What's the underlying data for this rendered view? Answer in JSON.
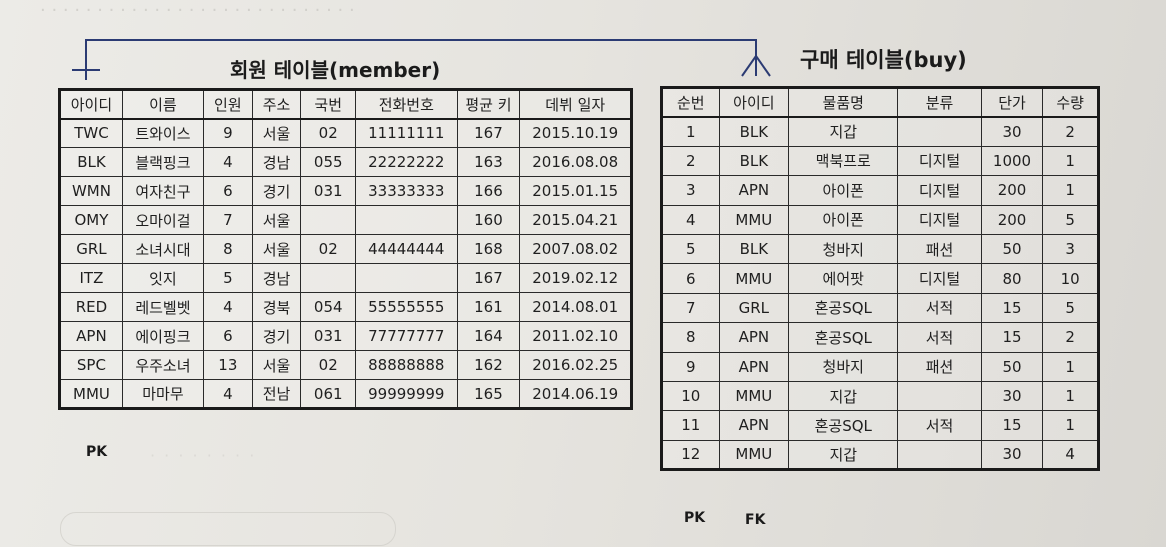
{
  "member_table": {
    "title": "회원 테이블(member)",
    "columns": [
      "아이디",
      "이름",
      "인원",
      "주소",
      "국번",
      "전화번호",
      "평균 키",
      "데뷔 일자"
    ],
    "rows": [
      [
        "TWC",
        "트와이스",
        "9",
        "서울",
        "02",
        "11111111",
        "167",
        "2015.10.19"
      ],
      [
        "BLK",
        "블랙핑크",
        "4",
        "경남",
        "055",
        "22222222",
        "163",
        "2016.08.08"
      ],
      [
        "WMN",
        "여자친구",
        "6",
        "경기",
        "031",
        "33333333",
        "166",
        "2015.01.15"
      ],
      [
        "OMY",
        "오마이걸",
        "7",
        "서울",
        "",
        "",
        "160",
        "2015.04.21"
      ],
      [
        "GRL",
        "소녀시대",
        "8",
        "서울",
        "02",
        "44444444",
        "168",
        "2007.08.02"
      ],
      [
        "ITZ",
        "잇지",
        "5",
        "경남",
        "",
        "",
        "167",
        "2019.02.12"
      ],
      [
        "RED",
        "레드벨벳",
        "4",
        "경북",
        "054",
        "55555555",
        "161",
        "2014.08.01"
      ],
      [
        "APN",
        "에이핑크",
        "6",
        "경기",
        "031",
        "77777777",
        "164",
        "2011.02.10"
      ],
      [
        "SPC",
        "우주소녀",
        "13",
        "서울",
        "02",
        "88888888",
        "162",
        "2016.02.25"
      ],
      [
        "MMU",
        "마마무",
        "4",
        "전남",
        "061",
        "99999999",
        "165",
        "2014.06.19"
      ]
    ],
    "pk_label": "PK"
  },
  "buy_table": {
    "title": "구매 테이블(buy)",
    "columns": [
      "순번",
      "아이디",
      "물품명",
      "분류",
      "단가",
      "수량"
    ],
    "rows": [
      [
        "1",
        "BLK",
        "지갑",
        "",
        "30",
        "2"
      ],
      [
        "2",
        "BLK",
        "맥북프로",
        "디지털",
        "1000",
        "1"
      ],
      [
        "3",
        "APN",
        "아이폰",
        "디지털",
        "200",
        "1"
      ],
      [
        "4",
        "MMU",
        "아이폰",
        "디지털",
        "200",
        "5"
      ],
      [
        "5",
        "BLK",
        "청바지",
        "패션",
        "50",
        "3"
      ],
      [
        "6",
        "MMU",
        "에어팟",
        "디지털",
        "80",
        "10"
      ],
      [
        "7",
        "GRL",
        "혼공SQL",
        "서적",
        "15",
        "5"
      ],
      [
        "8",
        "APN",
        "혼공SQL",
        "서적",
        "15",
        "2"
      ],
      [
        "9",
        "APN",
        "청바지",
        "패션",
        "50",
        "1"
      ],
      [
        "10",
        "MMU",
        "지갑",
        "",
        "30",
        "1"
      ],
      [
        "11",
        "APN",
        "혼공SQL",
        "서적",
        "15",
        "1"
      ],
      [
        "12",
        "MMU",
        "지갑",
        "",
        "30",
        "4"
      ]
    ],
    "pk_label": "PK",
    "fk_label": "FK"
  },
  "colors": {
    "connector": "#2b3b73",
    "border": "#1a1a1a"
  }
}
